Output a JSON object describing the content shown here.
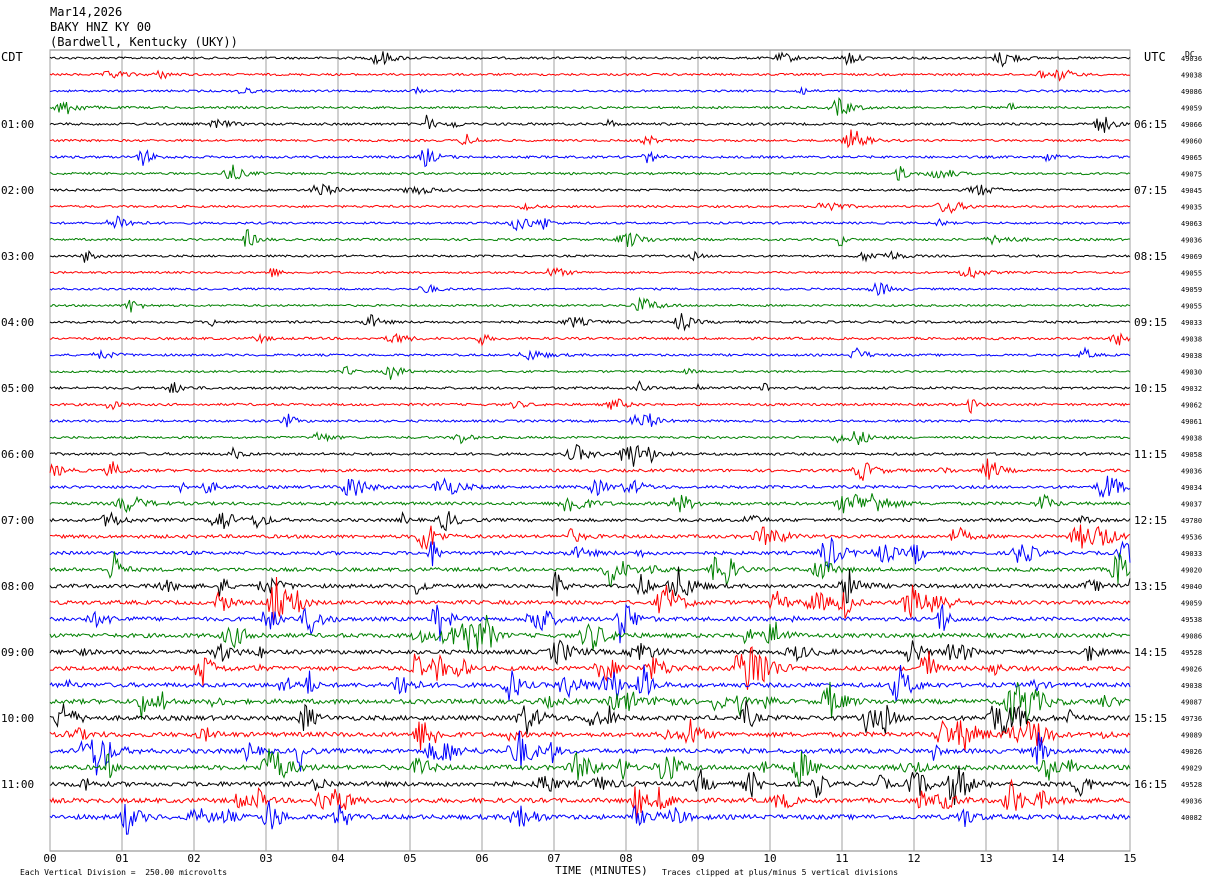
{
  "header": {
    "date": "Mar14,2026",
    "station": "BAKY HNZ KY 00",
    "location": "(Bardwell, Kentucky (UKY))"
  },
  "left_timezone": "CDT",
  "right_timezone": "UTC",
  "right_col_header": "DC",
  "footer": {
    "scale_note": "Each Vertical Division =  250.00 microvolts",
    "xlabel": "TIME (MINUTES)",
    "clip_note": "Traces clipped at plus/minus 5 vertical divisions"
  },
  "colors": {
    "line1": "#000000",
    "line2": "#ff0000",
    "line3": "#0000ff",
    "line4": "#008000",
    "grid": "#a0a0a0"
  },
  "chart_data": {
    "type": "line",
    "xlabel": "TIME (MINUTES)",
    "xlim": [
      0,
      15
    ],
    "x_ticks": [
      "00",
      "01",
      "02",
      "03",
      "04",
      "05",
      "06",
      "07",
      "08",
      "09",
      "10",
      "11",
      "12",
      "13",
      "14",
      "15"
    ],
    "trace_color_cycle": [
      "#000000",
      "#ff0000",
      "#0000ff",
      "#008000"
    ],
    "left_hour_labels": [
      "01:00",
      "02:00",
      "03:00",
      "04:00",
      "05:00",
      "06:00",
      "07:00",
      "08:00",
      "09:00",
      "10:00",
      "11:00"
    ],
    "right_hour_labels": [
      "06:15",
      "07:15",
      "08:15",
      "09:15",
      "10:15",
      "11:15",
      "12:15",
      "13:15",
      "14:15",
      "15:15",
      "16:15"
    ],
    "trace_dc_offsets": [
      "49036",
      "49038",
      "49086",
      "49059",
      "49066",
      "49060",
      "49065",
      "49075",
      "49045",
      "49035",
      "49063",
      "49036",
      "49069",
      "49055",
      "49059",
      "49055",
      "49033",
      "49038",
      "49038",
      "49030",
      "49032",
      "49062",
      "49061",
      "49038",
      "49058",
      "49036",
      "49034",
      "49037",
      "49780",
      "49536",
      "49033",
      "49020",
      "49040",
      "49059",
      "49538",
      "49086",
      "49528",
      "49026",
      "49038",
      "49087",
      "49736",
      "49089",
      "49026",
      "49029",
      "49528",
      "49036",
      "40082"
    ],
    "trace_activity": [
      0.7,
      0.6,
      0.5,
      0.6,
      0.9,
      0.6,
      0.8,
      0.6,
      0.6,
      0.6,
      0.6,
      0.7,
      0.5,
      0.5,
      0.5,
      0.5,
      0.8,
      0.8,
      0.6,
      0.5,
      0.9,
      0.8,
      0.7,
      0.7,
      1.0,
      1.2,
      1.3,
      1.5,
      1.6,
      1.8,
      1.8,
      2.0,
      2.2,
      2.4,
      2.4,
      2.6,
      2.6,
      2.8,
      2.8,
      3.0,
      3.0,
      3.0,
      3.0,
      3.0,
      3.0,
      3.0,
      3.0
    ]
  }
}
